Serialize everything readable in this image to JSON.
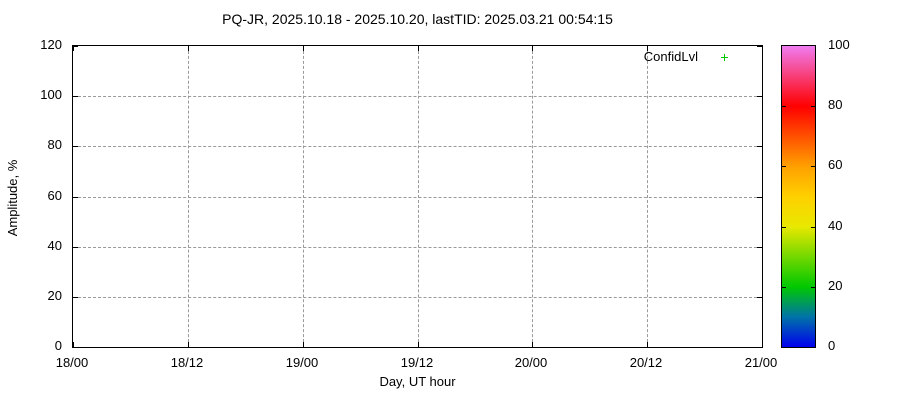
{
  "chart_data": {
    "type": "scatter",
    "title": "PQ-JR, 2025.10.18 - 2025.10.20, lastTID: 2025.03.21 00:54:15",
    "xlabel": "Day, UT hour",
    "ylabel": "Amplitude, %",
    "x_tick_labels": [
      "18/00",
      "18/12",
      "19/00",
      "19/12",
      "20/00",
      "20/12",
      "21/00"
    ],
    "y_ticks": [
      0,
      20,
      40,
      60,
      80,
      100,
      120
    ],
    "ylim": [
      0,
      120
    ],
    "grid": true,
    "legend": {
      "label": "ConfidLvl",
      "marker": "plus",
      "marker_color": "#00c800",
      "position": "top-right-inside"
    },
    "series": [
      {
        "name": "ConfidLvl",
        "points": []
      }
    ],
    "colorbar": {
      "range": [
        0,
        100
      ],
      "ticks": [
        0,
        20,
        40,
        60,
        80,
        100
      ],
      "gradient_stops": [
        {
          "value": 0,
          "color": "#0000ee"
        },
        {
          "value": 10,
          "color": "#0073a8"
        },
        {
          "value": 20,
          "color": "#00c800"
        },
        {
          "value": 40,
          "color": "#e8e800"
        },
        {
          "value": 50,
          "color": "#ffd000"
        },
        {
          "value": 60,
          "color": "#ffa000"
        },
        {
          "value": 80,
          "color": "#ff0000"
        },
        {
          "value": 100,
          "color": "#f07cf0"
        }
      ]
    },
    "colors": {
      "frame": "#000000",
      "grid": "#9a9a9a",
      "background": "#ffffff"
    }
  }
}
